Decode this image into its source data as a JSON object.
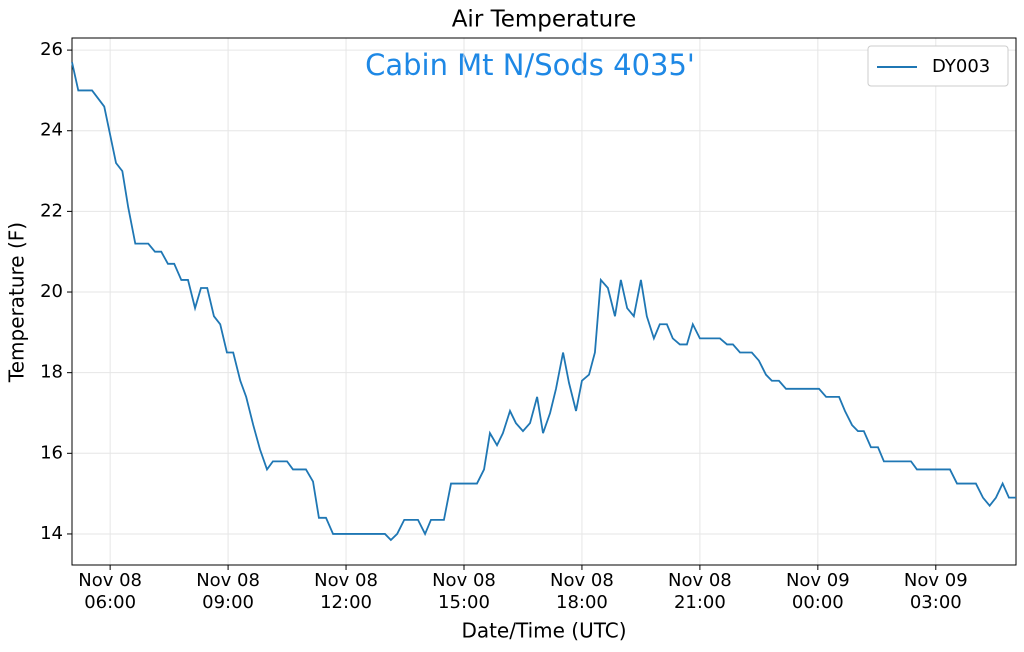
{
  "chart_data": {
    "type": "line",
    "title": "Air Temperature",
    "annotation": "Cabin Mt N/Sods 4035'",
    "xlabel": "Date/Time (UTC)",
    "ylabel": "Temperature (F)",
    "x": [
      5.03,
      5.19,
      5.54,
      5.85,
      6.0,
      6.15,
      6.31,
      6.46,
      6.64,
      6.97,
      7.14,
      7.3,
      7.47,
      7.63,
      7.81,
      7.98,
      8.16,
      8.31,
      8.47,
      8.64,
      8.8,
      8.97,
      9.13,
      9.31,
      9.46,
      9.64,
      9.81,
      9.99,
      10.14,
      10.5,
      10.65,
      10.98,
      11.16,
      11.31,
      11.49,
      11.67,
      12.99,
      13.14,
      13.3,
      13.48,
      13.83,
      14.01,
      14.16,
      14.49,
      14.67,
      15.33,
      15.51,
      15.66,
      15.84,
      15.99,
      16.17,
      16.32,
      16.5,
      16.68,
      16.86,
      17.01,
      17.19,
      17.34,
      17.52,
      17.67,
      17.85,
      18.0,
      18.18,
      18.33,
      18.48,
      18.66,
      18.84,
      18.99,
      19.15,
      19.32,
      19.5,
      19.65,
      19.83,
      19.98,
      20.16,
      20.31,
      20.49,
      20.67,
      20.82,
      21.0,
      21.51,
      21.69,
      21.84,
      22.02,
      22.32,
      22.5,
      22.68,
      22.83,
      23.01,
      23.19,
      24.03,
      24.21,
      24.54,
      24.69,
      24.87,
      25.02,
      25.17,
      25.35,
      25.53,
      25.68,
      26.37,
      26.52,
      27.36,
      27.54,
      28.02,
      28.2,
      28.37,
      28.53,
      28.7,
      28.86,
      29.04
    ],
    "series": [
      {
        "name": "DY003",
        "color": "#1f77b4",
        "values": [
          25.7,
          25.0,
          25.0,
          24.6,
          23.9,
          23.2,
          23.0,
          22.1,
          21.2,
          21.2,
          21.0,
          21.0,
          20.7,
          20.7,
          20.3,
          20.3,
          19.6,
          20.1,
          20.1,
          19.4,
          19.2,
          18.5,
          18.5,
          17.8,
          17.4,
          16.7,
          16.1,
          15.6,
          15.8,
          15.8,
          15.6,
          15.6,
          15.3,
          14.4,
          14.4,
          14.0,
          14.0,
          13.85,
          14.0,
          14.35,
          14.35,
          14.0,
          14.35,
          14.35,
          15.25,
          15.25,
          15.6,
          16.5,
          16.2,
          16.5,
          17.05,
          16.75,
          16.55,
          16.75,
          17.4,
          16.5,
          17.0,
          17.6,
          18.5,
          17.75,
          17.05,
          17.8,
          17.95,
          18.5,
          20.3,
          20.1,
          19.4,
          20.3,
          19.6,
          19.4,
          20.3,
          19.4,
          18.85,
          19.2,
          19.2,
          18.85,
          18.7,
          18.7,
          19.2,
          18.85,
          18.85,
          18.7,
          18.7,
          18.5,
          18.5,
          18.3,
          17.95,
          17.8,
          17.8,
          17.6,
          17.6,
          17.4,
          17.4,
          17.05,
          16.7,
          16.55,
          16.55,
          16.15,
          16.15,
          15.8,
          15.8,
          15.6,
          15.6,
          15.25,
          15.25,
          14.9,
          14.7,
          14.9,
          15.25,
          14.9,
          14.9
        ]
      }
    ],
    "xlim": [
      5.03,
      29.04
    ],
    "xticks": [
      {
        "value": 6,
        "label": "Nov 08\n06:00"
      },
      {
        "value": 9,
        "label": "Nov 08\n09:00"
      },
      {
        "value": 12,
        "label": "Nov 08\n12:00"
      },
      {
        "value": 15,
        "label": "Nov 08\n15:00"
      },
      {
        "value": 18,
        "label": "Nov 08\n18:00"
      },
      {
        "value": 21,
        "label": "Nov 08\n21:00"
      },
      {
        "value": 24,
        "label": "Nov 09\n00:00"
      },
      {
        "value": 27,
        "label": "Nov 09\n03:00"
      }
    ],
    "ylim": [
      13.23,
      26.3
    ],
    "yticks": [
      14,
      16,
      18,
      20,
      22,
      24,
      26
    ],
    "grid": true,
    "legend": "upper right"
  }
}
